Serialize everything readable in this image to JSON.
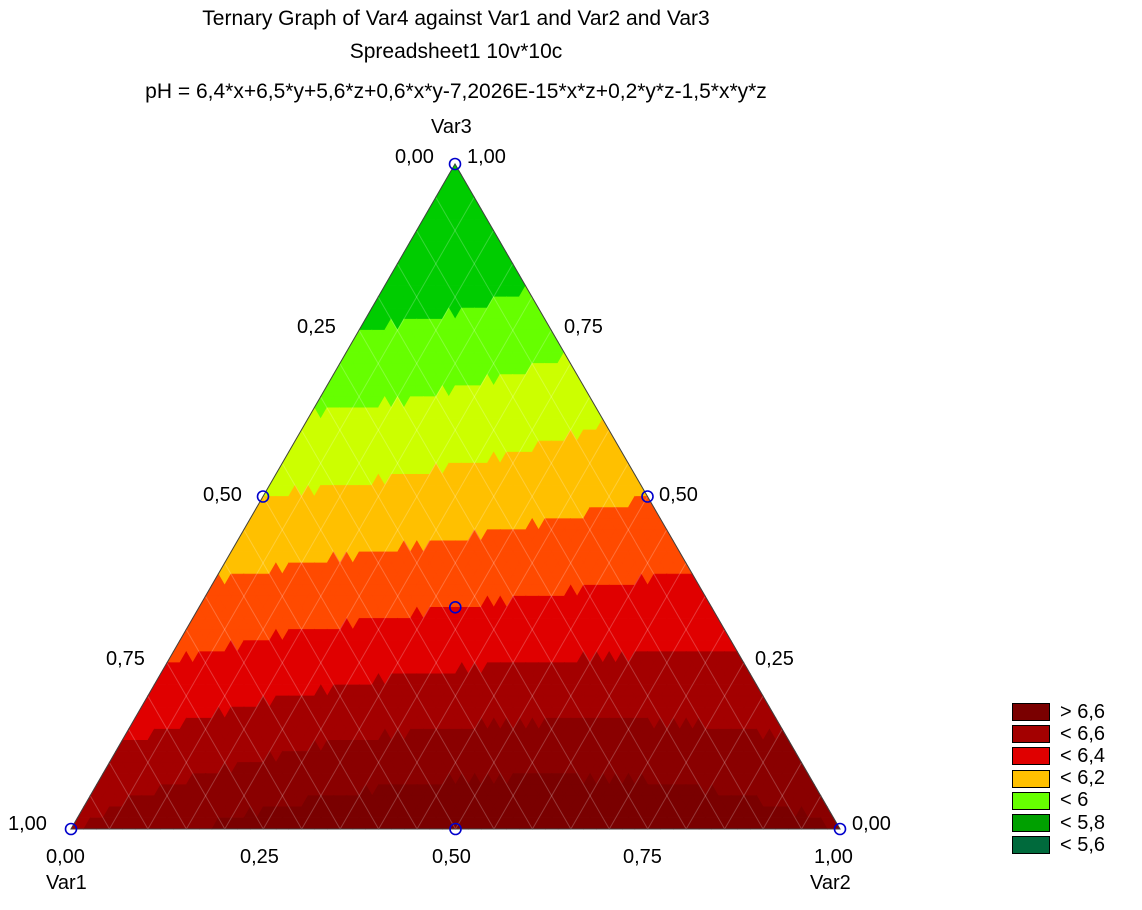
{
  "chart_data": {
    "type": "ternary-contour",
    "title": "Ternary Graph of Var4 against Var1 and Var2 and Var3",
    "subtitle": "Spreadsheet1 10v*10c",
    "formula": "pH = 6,4*x+6,5*y+5,6*z+0,6*x*y-7,2026E-15*x*z+0,2*y*z-1,5*x*y*z",
    "axes": {
      "top": "Var3",
      "bottom_left": "Var1",
      "bottom_right": "Var2"
    },
    "ticks": {
      "left_edge": [
        "1,00",
        "0,75",
        "0,50",
        "0,25",
        "0,00"
      ],
      "right_edge": [
        "0,00",
        "0,25",
        "0,50",
        "0,75",
        "1,00"
      ],
      "bottom_edge": [
        "0,00",
        "0,25",
        "0,50",
        "0,75",
        "1,00"
      ]
    },
    "coefficients": {
      "x": 6.4,
      "y": 6.5,
      "z": 5.6,
      "xy": 0.6,
      "xz": -7.2026e-15,
      "yz": 0.2,
      "xyz": -1.5
    },
    "design_points": [
      [
        1,
        0,
        0
      ],
      [
        0,
        1,
        0
      ],
      [
        0,
        0,
        1
      ],
      [
        0.5,
        0.5,
        0
      ],
      [
        0.5,
        0,
        0.5
      ],
      [
        0,
        0.5,
        0.5
      ],
      [
        0.3333,
        0.3333,
        0.3333
      ]
    ],
    "legend": [
      {
        "label": "> 6,6",
        "color": "#7a0000"
      },
      {
        "label": "< 6,6",
        "color": "#a30000"
      },
      {
        "label": "< 6,4",
        "color": "#e00000"
      },
      {
        "label": "< 6,2",
        "color": "#ffc000"
      },
      {
        "label": "< 6",
        "color": "#66ff00"
      },
      {
        "label": "< 5,8",
        "color": "#00a000"
      },
      {
        "label": "< 5,6",
        "color": "#006a3c"
      }
    ],
    "contour_levels": [
      5.4,
      5.6,
      5.8,
      5.9,
      6.0,
      6.1,
      6.2,
      6.3,
      6.4,
      6.5,
      6.6
    ],
    "band_colors": [
      "#006a3c",
      "#009a12",
      "#00cc00",
      "#66ff00",
      "#ccff00",
      "#ffc000",
      "#ff4a00",
      "#e00000",
      "#a30000",
      "#8a0000",
      "#7a0000"
    ],
    "marker_color": "#0000cc"
  }
}
